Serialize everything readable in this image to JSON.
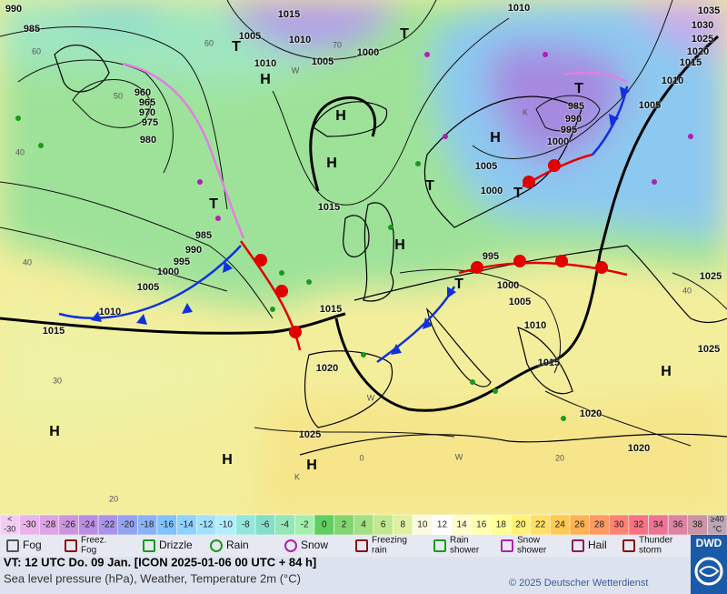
{
  "map": {
    "pressure_labels": [
      "990",
      "985",
      "1015",
      "1005",
      "1010",
      "1005",
      "1000",
      "1010",
      "1010",
      "1035",
      "1030",
      "1025",
      "1020",
      "1015",
      "1010",
      "1005",
      "960",
      "965",
      "970",
      "975",
      "980",
      "985",
      "990",
      "995",
      "1000",
      "1005",
      "1000",
      "1015",
      "985",
      "990",
      "995",
      "1000",
      "1005",
      "1010",
      "1015",
      "1015",
      "995",
      "1000",
      "1005",
      "1010",
      "1015",
      "1020",
      "1020",
      "1025",
      "1025",
      "1025",
      "1020"
    ],
    "centers": [
      "T",
      "H",
      "T",
      "H",
      "H",
      "T",
      "T",
      "H",
      "T",
      "T",
      "T",
      "H",
      "H",
      "H",
      "H",
      "H"
    ],
    "isotherm_labels": [
      "60",
      "70",
      "60",
      "50",
      "40",
      "40",
      "30",
      "20",
      "0",
      "20",
      "40",
      "W",
      "W",
      "W",
      "K",
      "K"
    ]
  },
  "scale": [
    [
      "<",
      "-30"
    ],
    [
      "-30"
    ],
    [
      "-28"
    ],
    [
      "-26"
    ],
    [
      "-24"
    ],
    [
      "-22"
    ],
    [
      "-20"
    ],
    [
      "-18"
    ],
    [
      "-16"
    ],
    [
      "-14"
    ],
    [
      "-12"
    ],
    [
      "-10"
    ],
    [
      "-8"
    ],
    [
      "-6"
    ],
    [
      "-4"
    ],
    [
      "-2"
    ],
    [
      "0"
    ],
    [
      "2"
    ],
    [
      "4"
    ],
    [
      "6"
    ],
    [
      "8"
    ],
    [
      "10"
    ],
    [
      "12"
    ],
    [
      "14"
    ],
    [
      "16"
    ],
    [
      "18"
    ],
    [
      "20"
    ],
    [
      "22"
    ],
    [
      "24"
    ],
    [
      "26"
    ],
    [
      "28"
    ],
    [
      "30"
    ],
    [
      "32"
    ],
    [
      "34"
    ],
    [
      "36"
    ],
    [
      "38"
    ],
    [
      "≥40",
      "°C"
    ]
  ],
  "legend": [
    [
      "Fog"
    ],
    [
      "Freez.",
      "Fog"
    ],
    [
      "Drizzle"
    ],
    [
      "Rain"
    ],
    [
      "Snow"
    ],
    [
      "Freezing",
      "rain"
    ],
    [
      "Rain",
      "shower"
    ],
    [
      "Snow",
      "shower"
    ],
    [
      "Hail"
    ],
    [
      "Thunder",
      "storm"
    ]
  ],
  "footer": {
    "valid_time": "VT: 12 UTC Do.  09 Jan. [ICON 2025-01-06  00 UTC + 84 h]",
    "description": "Sea level pressure (hPa), Weather, Temperature 2m (°C)",
    "copyright": "© 2025 Deutscher Wetterdienst",
    "logo": "DWD"
  }
}
